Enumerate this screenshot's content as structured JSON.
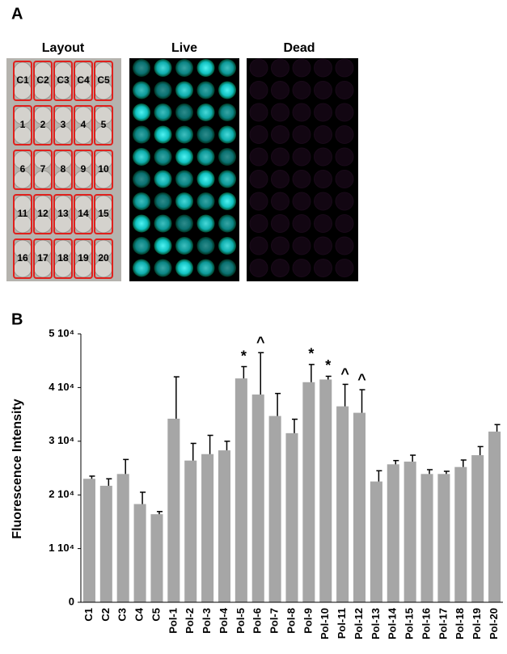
{
  "panel_a": {
    "label": "A",
    "titles": [
      "Layout",
      "Live",
      "Dead"
    ],
    "wells": [
      [
        "C1",
        "C2",
        "C3",
        "C4",
        "C5"
      ],
      [
        "1",
        "2",
        "3",
        "4",
        "5"
      ],
      [
        "6",
        "7",
        "8",
        "9",
        "10"
      ],
      [
        "11",
        "12",
        "13",
        "14",
        "15"
      ],
      [
        "16",
        "17",
        "18",
        "19",
        "20"
      ]
    ]
  },
  "panel_b": {
    "label": "B"
  },
  "chart_data": {
    "type": "bar",
    "ylabel": "Fluorescence Intensity",
    "categories": [
      "C1",
      "C2",
      "C3",
      "C4",
      "C5",
      "Pol-1",
      "Pol-2",
      "Pol-3",
      "Pol-4",
      "Pol-5",
      "Pol-6",
      "Pol-7",
      "Pol-8",
      "Pol-9",
      "Pol-10",
      "Pol-11",
      "Pol-12",
      "Pol-13",
      "Pol-14",
      "Pol-15",
      "Pol-16",
      "Pol-17",
      "Pol-18",
      "Pol-19",
      "Pol-20"
    ],
    "values": [
      23000,
      21700,
      23900,
      18300,
      16400,
      34200,
      26400,
      27600,
      28300,
      41700,
      38700,
      34700,
      31500,
      41000,
      41500,
      36500,
      35300,
      22500,
      25700,
      26200,
      23900,
      23900,
      25200,
      27400,
      31800
    ],
    "errors": [
      500,
      1300,
      2700,
      2200,
      500,
      7800,
      3200,
      3500,
      1700,
      2200,
      7800,
      4200,
      2600,
      3300,
      600,
      4100,
      4300,
      2000,
      700,
      1200,
      800,
      500,
      1300,
      1600,
      1300
    ],
    "markers": [
      null,
      null,
      null,
      null,
      null,
      null,
      null,
      null,
      null,
      "*",
      "^",
      null,
      null,
      "*",
      "*",
      "^",
      "^",
      null,
      null,
      null,
      null,
      null,
      null,
      null,
      null
    ],
    "color": "#a6a6a6",
    "ylim": [
      0,
      50000
    ],
    "yticks": [
      0,
      {
        "value": 10000,
        "label": "1 10⁴"
      },
      {
        "value": 20000,
        "label": "2 10⁴"
      },
      {
        "value": 30000,
        "label": "3 10⁴"
      },
      {
        "value": 40000,
        "label": "4 10⁴"
      },
      {
        "value": 50000,
        "label": "5 10⁴"
      }
    ]
  }
}
